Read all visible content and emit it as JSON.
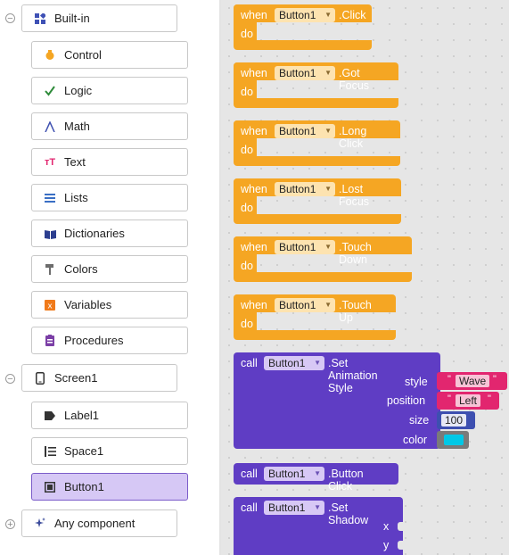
{
  "palette": {
    "builtin": {
      "label": "Built-in"
    },
    "items": [
      {
        "label": "Control",
        "icon": "control-icon"
      },
      {
        "label": "Logic",
        "icon": "logic-icon"
      },
      {
        "label": "Math",
        "icon": "math-icon"
      },
      {
        "label": "Text",
        "icon": "text-icon"
      },
      {
        "label": "Lists",
        "icon": "lists-icon"
      },
      {
        "label": "Dictionaries",
        "icon": "dictionaries-icon"
      },
      {
        "label": "Colors",
        "icon": "colors-icon"
      },
      {
        "label": "Variables",
        "icon": "variables-icon"
      },
      {
        "label": "Procedures",
        "icon": "procedures-icon"
      }
    ],
    "screen": {
      "label": "Screen1"
    },
    "components": [
      {
        "label": "Label1",
        "icon": "label-icon"
      },
      {
        "label": "Space1",
        "icon": "space-icon"
      },
      {
        "label": "Button1",
        "icon": "button-icon",
        "selected": true
      }
    ],
    "any_component": {
      "label": "Any component"
    }
  },
  "blocks": {
    "when_label": "when",
    "do_label": "do",
    "call_label": "call",
    "component": "Button1",
    "events": [
      ".Click",
      ".Got Focus",
      ".Long Click",
      ".Lost Focus",
      ".Touch Down",
      ".Touch Up"
    ],
    "set_animation": {
      "method": ".Set Animation Style",
      "params": [
        "style",
        "position",
        "size",
        "color"
      ],
      "style_value": "Wave",
      "position_value": "Left",
      "size_value": "100",
      "color_value": "#00c8e6"
    },
    "button_click": {
      "method": ".Button Click"
    },
    "set_shadow": {
      "method": ".Set Shadow",
      "params": [
        "x",
        "y"
      ]
    }
  },
  "colors": {
    "event_block": "#f5a623",
    "call_block": "#5f3dc4",
    "text_block": "#e2266f",
    "math_block": "#3d4fb0",
    "selected_bg": "#d6c8f5"
  }
}
